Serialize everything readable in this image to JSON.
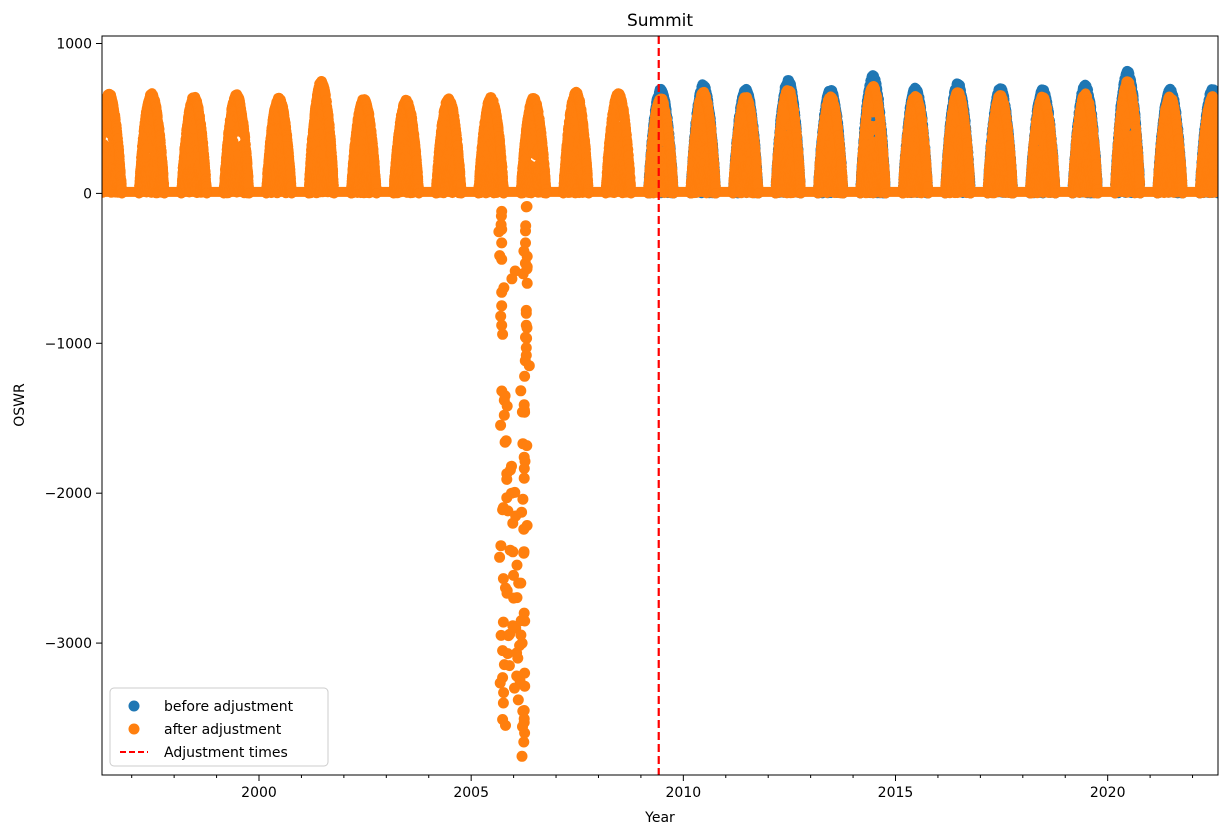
{
  "chart_data": {
    "type": "scatter",
    "title": "Summit",
    "xlabel": "Year",
    "ylabel": "OSWR",
    "xlim": [
      1996.3,
      2022.6
    ],
    "ylim": [
      -3880,
      1050
    ],
    "x_ticks": [
      2000,
      2005,
      2010,
      2015,
      2020
    ],
    "y_ticks": [
      1000,
      0,
      -1000,
      -2000,
      -3000
    ],
    "y_tick_labels": [
      "1000",
      "0",
      "−1000",
      "−2000",
      "−3000"
    ],
    "grid": false,
    "legend_position": "lower-left",
    "adjustment_time": 2009.42,
    "colors": {
      "before": "#1f77b4",
      "after": "#ff7f0e",
      "adjustment": "#ff0000"
    },
    "series": [
      {
        "name": "before adjustment",
        "marker": "circle",
        "summer_peaks": [
          {
            "year": 1996,
            "peak": 670
          },
          {
            "year": 1997,
            "peak": 670
          },
          {
            "year": 1998,
            "peak": 650
          },
          {
            "year": 1999,
            "peak": 665
          },
          {
            "year": 2000,
            "peak": 640
          },
          {
            "year": 2001,
            "peak": 750
          },
          {
            "year": 2002,
            "peak": 640
          },
          {
            "year": 2003,
            "peak": 630
          },
          {
            "year": 2004,
            "peak": 640
          },
          {
            "year": 2005,
            "peak": 645
          },
          {
            "year": 2006,
            "peak": 640
          },
          {
            "year": 2007,
            "peak": 680
          },
          {
            "year": 2008,
            "peak": 675
          },
          {
            "year": 2009,
            "peak": 700
          },
          {
            "year": 2010,
            "peak": 730
          },
          {
            "year": 2011,
            "peak": 700
          },
          {
            "year": 2012,
            "peak": 760
          },
          {
            "year": 2013,
            "peak": 700
          },
          {
            "year": 2014,
            "peak": 790
          },
          {
            "year": 2015,
            "peak": 710
          },
          {
            "year": 2016,
            "peak": 740
          },
          {
            "year": 2017,
            "peak": 710
          },
          {
            "year": 2018,
            "peak": 700
          },
          {
            "year": 2019,
            "peak": 730
          },
          {
            "year": 2020,
            "peak": 820
          },
          {
            "year": 2021,
            "peak": 700
          },
          {
            "year": 2022,
            "peak": 700
          }
        ]
      },
      {
        "name": "after adjustment",
        "marker": "circle",
        "summer_peaks": [
          {
            "year": 1996,
            "peak": 670
          },
          {
            "year": 1997,
            "peak": 670
          },
          {
            "year": 1998,
            "peak": 650
          },
          {
            "year": 1999,
            "peak": 665
          },
          {
            "year": 2000,
            "peak": 640
          },
          {
            "year": 2001,
            "peak": 750
          },
          {
            "year": 2002,
            "peak": 640
          },
          {
            "year": 2003,
            "peak": 630
          },
          {
            "year": 2004,
            "peak": 640
          },
          {
            "year": 2005,
            "peak": 645
          },
          {
            "year": 2006,
            "peak": 640
          },
          {
            "year": 2007,
            "peak": 680
          },
          {
            "year": 2008,
            "peak": 675
          },
          {
            "year": 2009,
            "peak": 640
          },
          {
            "year": 2010,
            "peak": 680
          },
          {
            "year": 2011,
            "peak": 650
          },
          {
            "year": 2012,
            "peak": 700
          },
          {
            "year": 2013,
            "peak": 650
          },
          {
            "year": 2014,
            "peak": 720
          },
          {
            "year": 2015,
            "peak": 660
          },
          {
            "year": 2016,
            "peak": 680
          },
          {
            "year": 2017,
            "peak": 660
          },
          {
            "year": 2018,
            "peak": 650
          },
          {
            "year": 2019,
            "peak": 670
          },
          {
            "year": 2020,
            "peak": 750
          },
          {
            "year": 2021,
            "peak": 650
          },
          {
            "year": 2022,
            "peak": 650
          }
        ],
        "negative_outliers": [
          [
            2005.72,
            -120
          ],
          [
            2005.72,
            -240
          ],
          [
            2005.72,
            -330
          ],
          [
            2005.72,
            -440
          ],
          [
            2005.72,
            -660
          ],
          [
            2005.72,
            -750
          ],
          [
            2005.72,
            -880
          ],
          [
            2005.78,
            -1380
          ],
          [
            2005.78,
            -1480
          ],
          [
            2005.8,
            -1660
          ],
          [
            2005.8,
            -1350
          ],
          [
            2005.84,
            -1870
          ],
          [
            2005.84,
            -2030
          ],
          [
            2005.7,
            -2350
          ],
          [
            2005.74,
            -2110
          ],
          [
            2005.76,
            -2570
          ],
          [
            2005.76,
            -2860
          ],
          [
            2005.74,
            -3050
          ],
          [
            2005.74,
            -3230
          ],
          [
            2005.76,
            -3400
          ],
          [
            2005.74,
            -3510
          ],
          [
            2005.85,
            -2650
          ],
          [
            2005.88,
            -2950
          ],
          [
            2005.9,
            -3150
          ],
          [
            2005.92,
            -2380
          ],
          [
            2005.95,
            -1820
          ],
          [
            2005.98,
            -2200
          ],
          [
            2006.0,
            -2700
          ],
          [
            2006.02,
            -3300
          ],
          [
            2006.05,
            -2900
          ],
          [
            2006.08,
            -2480
          ],
          [
            2006.1,
            -3100
          ],
          [
            2006.12,
            -2600
          ],
          [
            2006.15,
            -3250
          ],
          [
            2006.18,
            -2850
          ],
          [
            2006.2,
            -3000
          ],
          [
            2006.22,
            -1670
          ],
          [
            2006.25,
            -1760
          ],
          [
            2006.25,
            -1900
          ],
          [
            2006.22,
            -2040
          ],
          [
            2006.24,
            -2240
          ],
          [
            2006.24,
            -2400
          ],
          [
            2006.25,
            -2800
          ],
          [
            2006.26,
            -3200
          ],
          [
            2006.25,
            -3450
          ],
          [
            2006.25,
            -3530
          ],
          [
            2006.26,
            -3600
          ],
          [
            2006.24,
            -3660
          ],
          [
            2006.26,
            -1220
          ],
          [
            2006.25,
            -1410
          ],
          [
            2006.26,
            -1460
          ],
          [
            2006.3,
            -800
          ],
          [
            2006.3,
            -880
          ],
          [
            2006.28,
            -960
          ],
          [
            2006.3,
            -1030
          ],
          [
            2006.3,
            -1080
          ],
          [
            2006.32,
            -420
          ],
          [
            2006.32,
            -490
          ],
          [
            2006.32,
            -600
          ],
          [
            2006.28,
            -330
          ],
          [
            2006.28,
            -250
          ],
          [
            2006.3,
            -90
          ],
          [
            2005.96,
            -570
          ],
          [
            2005.95,
            -2000
          ]
        ]
      },
      {
        "name": "Adjustment times",
        "style": "dashed"
      }
    ]
  }
}
